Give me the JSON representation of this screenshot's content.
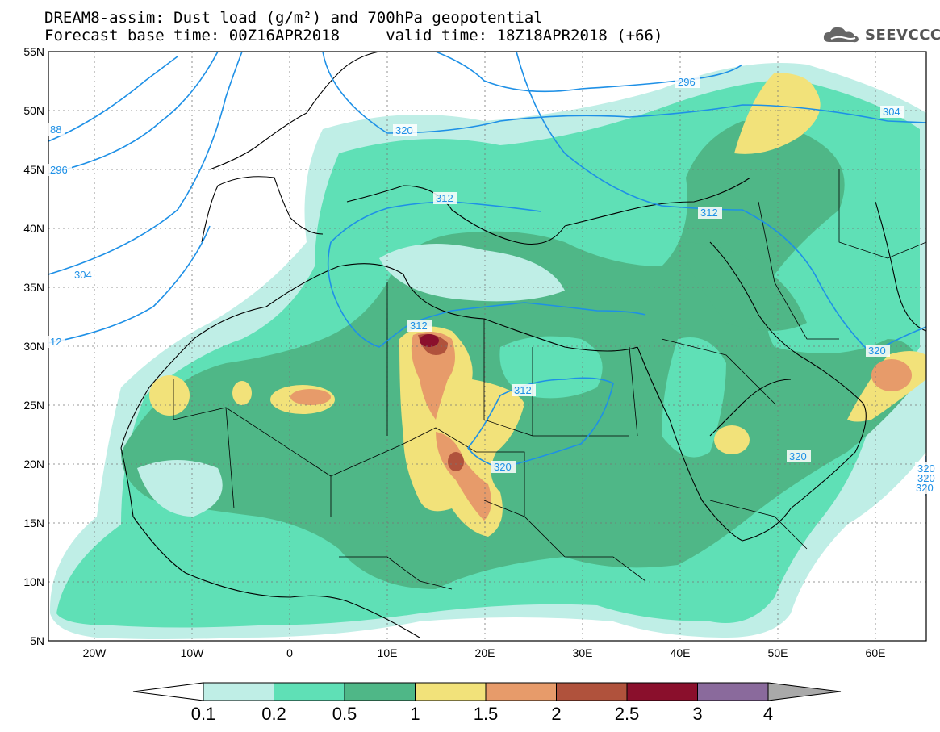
{
  "header": {
    "title_line1": "DREAM8-assim: Dust load (g/m²) and 700hPa geopotential",
    "title_line2": "Forecast base time: 00Z16APR2018     valid time: 18Z18APR2018 (+66)"
  },
  "logo": {
    "text": "SEEVCCC",
    "icon": "cloud-logo-icon"
  },
  "map": {
    "lat_labels": [
      "55N",
      "50N",
      "45N",
      "40N",
      "35N",
      "30N",
      "25N",
      "20N",
      "15N",
      "10N",
      "5N"
    ],
    "lon_labels": [
      "20W",
      "10W",
      "0",
      "10E",
      "20E",
      "30E",
      "40E",
      "50E",
      "60E"
    ],
    "contour_labels": [
      "88",
      "296",
      "304",
      "12",
      "320",
      "312",
      "296",
      "304",
      "312",
      "320",
      "312",
      "312",
      "320",
      "320",
      "320",
      "320",
      "320"
    ],
    "contour_color": "#1e90e6"
  },
  "colorbar": {
    "labels": [
      "0.1",
      "0.2",
      "0.5",
      "1",
      "1.5",
      "2",
      "2.5",
      "3",
      "4"
    ],
    "colors": [
      "#bfeee6",
      "#5fe0b6",
      "#4fb787",
      "#f2e27a",
      "#e79b6a",
      "#b0523c",
      "#8a0f2c",
      "#8a6a9c",
      "#a9a9a9"
    ]
  }
}
